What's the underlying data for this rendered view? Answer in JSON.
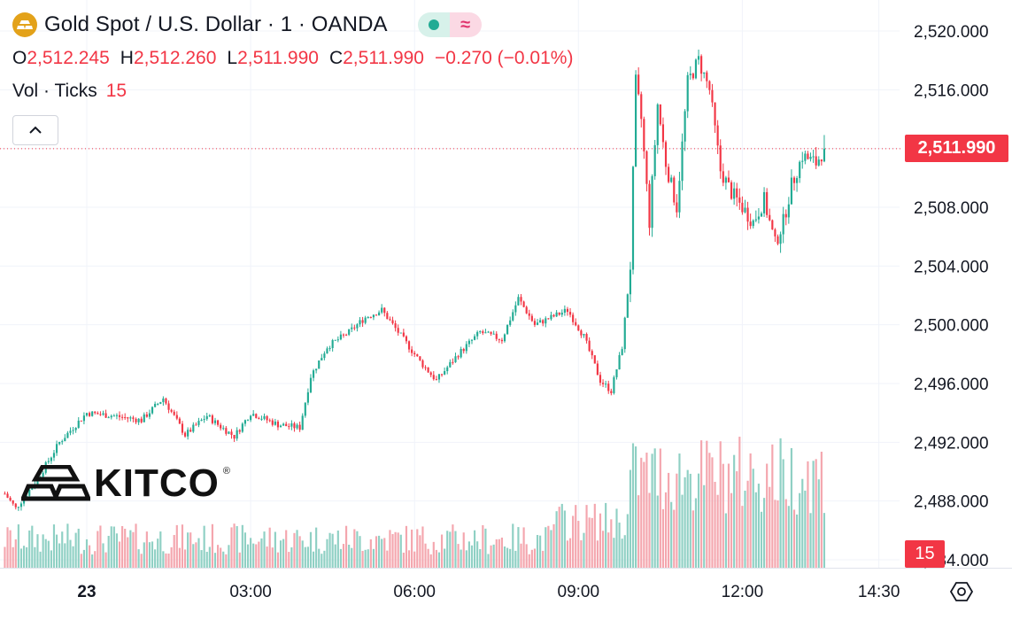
{
  "header": {
    "title": "Gold Spot / U.S. Dollar · 1 · OANDA",
    "ohlc": [
      {
        "key": "O",
        "value": "2,512.245"
      },
      {
        "key": "H",
        "value": "2,512.260"
      },
      {
        "key": "L",
        "value": "2,511.990"
      },
      {
        "key": "C",
        "value": "2,511.990"
      }
    ],
    "change": "−0.270 (−0.01%)",
    "volume_label": "Vol · Ticks",
    "volume_value": "15",
    "pill_icon_right": "≈"
  },
  "logo": {
    "text": "KITCO",
    "reg": "®"
  },
  "colors": {
    "up": "#22ab94",
    "down": "#f23645",
    "up_volume": "#8fd0c4",
    "down_volume": "#f4a6ae",
    "grid": "#f0f3fa",
    "logo_gold": "#e3a21a"
  },
  "price_badge": "2,511.990",
  "volume_badge": "15",
  "chart_data": {
    "type": "candlestick",
    "title": "Gold Spot / U.S. Dollar · 1 · OANDA",
    "ylim": [
      2484,
      2521.5
    ],
    "y_ticks": [
      "2,520.000",
      "2,516.000",
      "2,512.000",
      "2,508.000",
      "2,504.000",
      "2,500.000",
      "2,496.000",
      "2,492.000",
      "2,488.000",
      "2,484.000"
    ],
    "y_tick_values": [
      2520,
      2516,
      2512,
      2508,
      2504,
      2500,
      2496,
      2492,
      2488,
      2484
    ],
    "x_ticks": [
      "23",
      "03:00",
      "06:00",
      "09:00",
      "12:00",
      "14:30"
    ],
    "x_tick_hours": [
      0,
      3,
      6,
      9,
      12,
      14.5
    ],
    "last_price": 2511.99,
    "volume_label": "Vol · Ticks",
    "grid": true,
    "close_path_hours": [
      -1.5,
      -1.3,
      -0.9,
      -0.5,
      0,
      0.5,
      1.0,
      1.4,
      1.8,
      2.2,
      2.4,
      2.7,
      3.0,
      3.5,
      3.9,
      4.1,
      4.4,
      4.8,
      5.1,
      5.4,
      5.8,
      6.1,
      6.4,
      6.8,
      7.2,
      7.6,
      7.9,
      8.2,
      8.5,
      8.8,
      9.1,
      9.4,
      9.6,
      9.8,
      9.95,
      10.05,
      10.15,
      10.3,
      10.45,
      10.6,
      10.8,
      11.0,
      11.2,
      11.4,
      11.6,
      11.8,
      12.0,
      12.2,
      12.4,
      12.6,
      12.75,
      12.9,
      13.1,
      13.35,
      13.5
    ],
    "close_path_values": [
      2488.5,
      2487.5,
      2489.5,
      2492.0,
      2494.0,
      2493.8,
      2493.5,
      2495.0,
      2492.5,
      2493.8,
      2493.2,
      2492.4,
      2494.0,
      2493.2,
      2493.0,
      2496.5,
      2498.5,
      2499.5,
      2500.5,
      2501.0,
      2499.0,
      2497.5,
      2496.2,
      2498.0,
      2499.5,
      2499.0,
      2501.8,
      2500.0,
      2500.5,
      2501.0,
      2499.2,
      2496.2,
      2495.5,
      2498.5,
      2504.0,
      2516.5,
      2514.0,
      2507.0,
      2515.0,
      2511.0,
      2508.0,
      2516.5,
      2518.0,
      2516.0,
      2510.5,
      2509.0,
      2508.0,
      2507.0,
      2508.5,
      2505.5,
      2507.0,
      2509.5,
      2511.5,
      2511.0,
      2511.99
    ]
  }
}
